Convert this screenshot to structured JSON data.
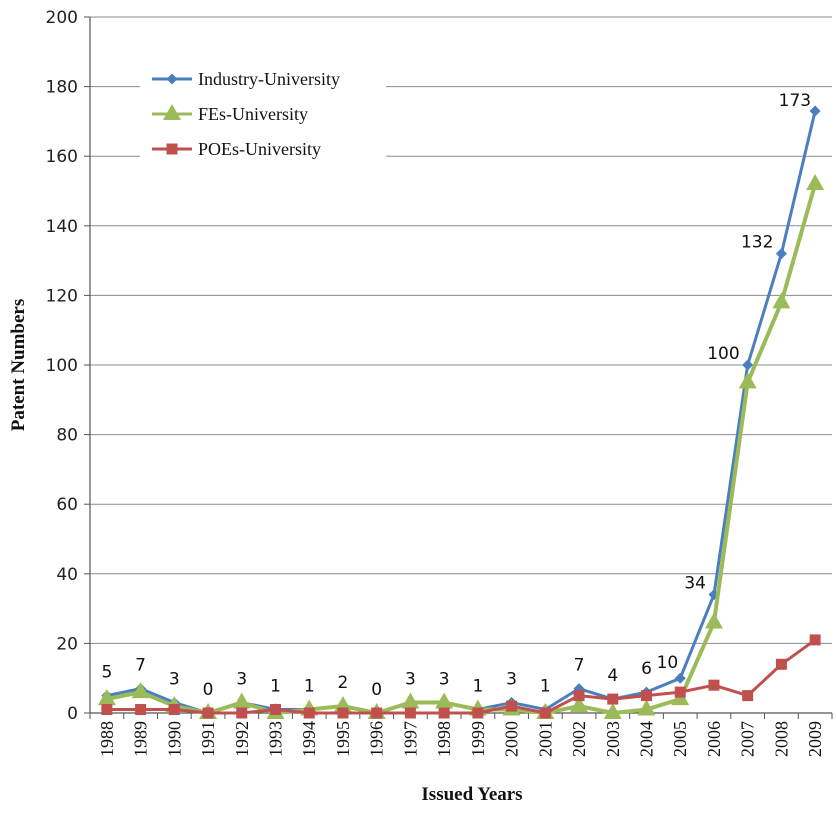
{
  "chart_data": {
    "type": "line",
    "title": "",
    "xlabel": "Issued Years",
    "ylabel": "Patent Numbers",
    "ylim": [
      0,
      200
    ],
    "yticks": [
      0,
      20,
      40,
      60,
      80,
      100,
      120,
      140,
      160,
      180,
      200
    ],
    "categories": [
      "1988",
      "1989",
      "1990",
      "1991",
      "1992",
      "1993",
      "1994",
      "1995",
      "1996",
      "1997",
      "1998",
      "1999",
      "2000",
      "2001",
      "2002",
      "2003",
      "2004",
      "2005",
      "2006",
      "2007",
      "2008",
      "2009"
    ],
    "grid": "horizontal",
    "legend_position": "top-left",
    "series": [
      {
        "name": "Industry-University",
        "color": "#4a7ebf",
        "marker": "diamond",
        "values": [
          5,
          7,
          3,
          0,
          3,
          1,
          1,
          2,
          0,
          3,
          3,
          1,
          3,
          1,
          7,
          4,
          6,
          10,
          34,
          100,
          132,
          173
        ],
        "data_labels": [
          "5",
          "7",
          "3",
          "0",
          "3",
          "1",
          "1",
          "2",
          "0",
          "3",
          "3",
          "1",
          "3",
          "1",
          "7",
          "4",
          "6",
          "10",
          "34",
          "100",
          "132",
          "173"
        ]
      },
      {
        "name": "FEs-University",
        "color": "#9bbb59",
        "marker": "triangle",
        "values": [
          4,
          6,
          2,
          0,
          3,
          0,
          1,
          2,
          0,
          3,
          3,
          1,
          1,
          0,
          2,
          0,
          1,
          4,
          26,
          95,
          118,
          152
        ]
      },
      {
        "name": "POEs-University",
        "color": "#c0504d",
        "marker": "square",
        "values": [
          1,
          1,
          1,
          0,
          0,
          1,
          0,
          0,
          0,
          0,
          0,
          0,
          2,
          0,
          5,
          4,
          5,
          6,
          8,
          5,
          14,
          21
        ]
      }
    ]
  }
}
